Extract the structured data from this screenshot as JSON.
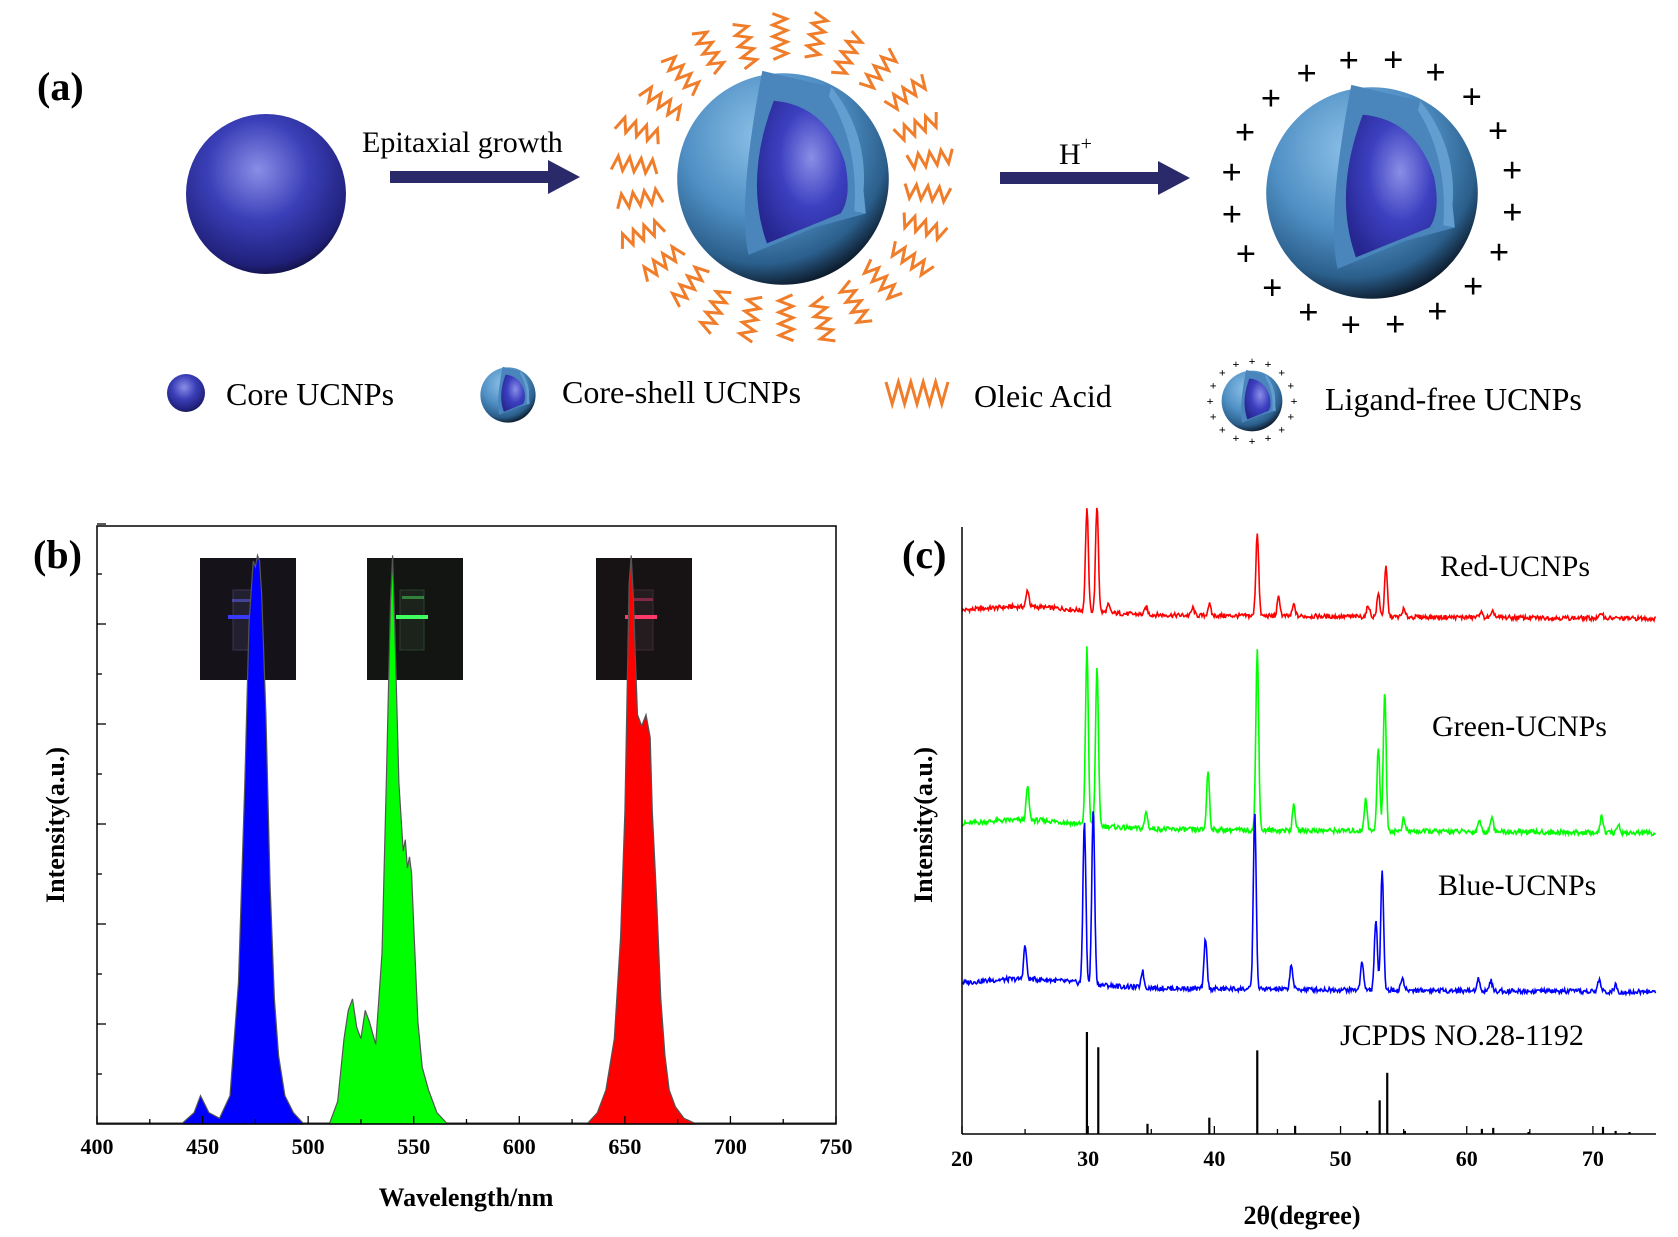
{
  "panel_a": {
    "label": "(a)",
    "step1_label": "Epitaxial growth",
    "step2_label": "H",
    "step2_superscript": "+",
    "legend": {
      "core": "Core UCNPs",
      "core_shell": "Core-shell UCNPs",
      "oleic_acid": "Oleic Acid",
      "ligand_free": "Ligand-free UCNPs"
    }
  },
  "chart_data": [
    {
      "panel": "(b)",
      "type": "area",
      "title": "",
      "xlabel": "Wavelength/nm",
      "ylabel": "Intensity(a.u.)",
      "xlim": [
        400,
        750
      ],
      "ylim": [
        0,
        1.05
      ],
      "xticks": [
        400,
        450,
        500,
        550,
        600,
        650,
        700,
        750
      ],
      "series": [
        {
          "name": "Blue",
          "color": "#0000ff",
          "x": [
            440,
            446,
            449,
            453,
            458,
            463,
            467,
            470,
            472,
            474,
            475,
            476,
            477,
            478,
            480,
            482,
            484,
            486,
            489,
            493,
            498
          ],
          "y": [
            0,
            0.02,
            0.05,
            0.02,
            0.01,
            0.05,
            0.25,
            0.6,
            0.88,
            0.99,
            0.98,
            1.0,
            0.99,
            0.93,
            0.72,
            0.42,
            0.22,
            0.12,
            0.05,
            0.02,
            0
          ]
        },
        {
          "name": "Green",
          "color": "#00ff00",
          "x": [
            510,
            514,
            517,
            519,
            521,
            523,
            525,
            527,
            529,
            532,
            535,
            537,
            539,
            540,
            541,
            543,
            545,
            546,
            547,
            548,
            549,
            550,
            552,
            554,
            557,
            561,
            566
          ],
          "y": [
            0,
            0.04,
            0.15,
            0.2,
            0.22,
            0.17,
            0.15,
            0.2,
            0.18,
            0.14,
            0.3,
            0.6,
            0.92,
            1.0,
            0.88,
            0.6,
            0.48,
            0.5,
            0.45,
            0.47,
            0.44,
            0.35,
            0.18,
            0.1,
            0.06,
            0.02,
            0
          ]
        },
        {
          "name": "Red",
          "color": "#ff0000",
          "x": [
            632,
            637,
            641,
            645,
            648,
            650,
            651,
            652,
            653,
            654,
            655,
            656,
            658,
            660,
            662,
            663,
            665,
            667,
            669,
            671,
            674,
            678,
            684
          ],
          "y": [
            0,
            0.02,
            0.06,
            0.15,
            0.33,
            0.55,
            0.75,
            0.95,
            1.0,
            0.93,
            0.82,
            0.72,
            0.7,
            0.72,
            0.68,
            0.55,
            0.4,
            0.22,
            0.12,
            0.06,
            0.03,
            0.01,
            0
          ]
        }
      ],
      "annotations": [
        "blue vial photo",
        "green vial photo",
        "red vial photo"
      ]
    },
    {
      "panel": "(c)",
      "type": "line",
      "title": "",
      "xlabel": "2θ(degree)",
      "ylabel": "Intensity(a.u.)",
      "xlim": [
        20,
        75
      ],
      "xticks": [
        20,
        30,
        40,
        50,
        60,
        70
      ],
      "baseline_y": 0,
      "series": [
        {
          "name": "Red-UCNPs",
          "color": "#ff0000",
          "baseline": 0.1,
          "peaks": [
            [
              25.2,
              0.045
            ],
            [
              29.9,
              0.27
            ],
            [
              30.7,
              0.28
            ],
            [
              31.6,
              0.02
            ],
            [
              34.6,
              0.02
            ],
            [
              38.3,
              0.02
            ],
            [
              39.6,
              0.03
            ],
            [
              43.4,
              0.22
            ],
            [
              45.1,
              0.05
            ],
            [
              46.3,
              0.03
            ],
            [
              52.2,
              0.03
            ],
            [
              53.0,
              0.06
            ],
            [
              53.6,
              0.13
            ],
            [
              55.0,
              0.02
            ],
            [
              61.1,
              0.015
            ],
            [
              62.1,
              0.015
            ],
            [
              70.7,
              0.015
            ]
          ]
        },
        {
          "name": "Green-UCNPs",
          "color": "#00ff00",
          "baseline": 0,
          "peaks": [
            [
              25.2,
              0.08
            ],
            [
              29.9,
              0.42
            ],
            [
              30.7,
              0.38
            ],
            [
              34.6,
              0.04
            ],
            [
              39.5,
              0.14
            ],
            [
              43.4,
              0.43
            ],
            [
              46.3,
              0.06
            ],
            [
              52.0,
              0.08
            ],
            [
              53.0,
              0.2
            ],
            [
              53.5,
              0.33
            ],
            [
              55.0,
              0.03
            ],
            [
              61.0,
              0.03
            ],
            [
              62.0,
              0.04
            ],
            [
              70.7,
              0.04
            ],
            [
              72.0,
              0.02
            ]
          ]
        },
        {
          "name": "Blue-UCNPs",
          "color": "#0000ff",
          "baseline": 0,
          "peaks": [
            [
              25.0,
              0.08
            ],
            [
              29.7,
              0.39
            ],
            [
              30.4,
              0.42
            ],
            [
              34.3,
              0.04
            ],
            [
              39.3,
              0.12
            ],
            [
              43.2,
              0.42
            ],
            [
              46.1,
              0.06
            ],
            [
              51.7,
              0.07
            ],
            [
              52.8,
              0.17
            ],
            [
              53.3,
              0.29
            ],
            [
              54.9,
              0.03
            ],
            [
              60.9,
              0.03
            ],
            [
              61.9,
              0.025
            ],
            [
              70.5,
              0.03
            ],
            [
              71.8,
              0.015
            ]
          ]
        }
      ],
      "reference": {
        "name": "JCPDS NO.28-1192",
        "color": "#000000",
        "lines": [
          [
            29.9,
            1.0
          ],
          [
            30.8,
            0.85
          ],
          [
            34.7,
            0.1
          ],
          [
            39.6,
            0.16
          ],
          [
            43.4,
            0.82
          ],
          [
            46.4,
            0.08
          ],
          [
            52.1,
            0.03
          ],
          [
            53.1,
            0.33
          ],
          [
            53.7,
            0.6
          ],
          [
            55.1,
            0.03
          ],
          [
            61.2,
            0.05
          ],
          [
            62.1,
            0.06
          ],
          [
            64.9,
            0.02
          ],
          [
            70.8,
            0.07
          ],
          [
            71.8,
            0.03
          ],
          [
            72.9,
            0.02
          ]
        ]
      }
    }
  ]
}
